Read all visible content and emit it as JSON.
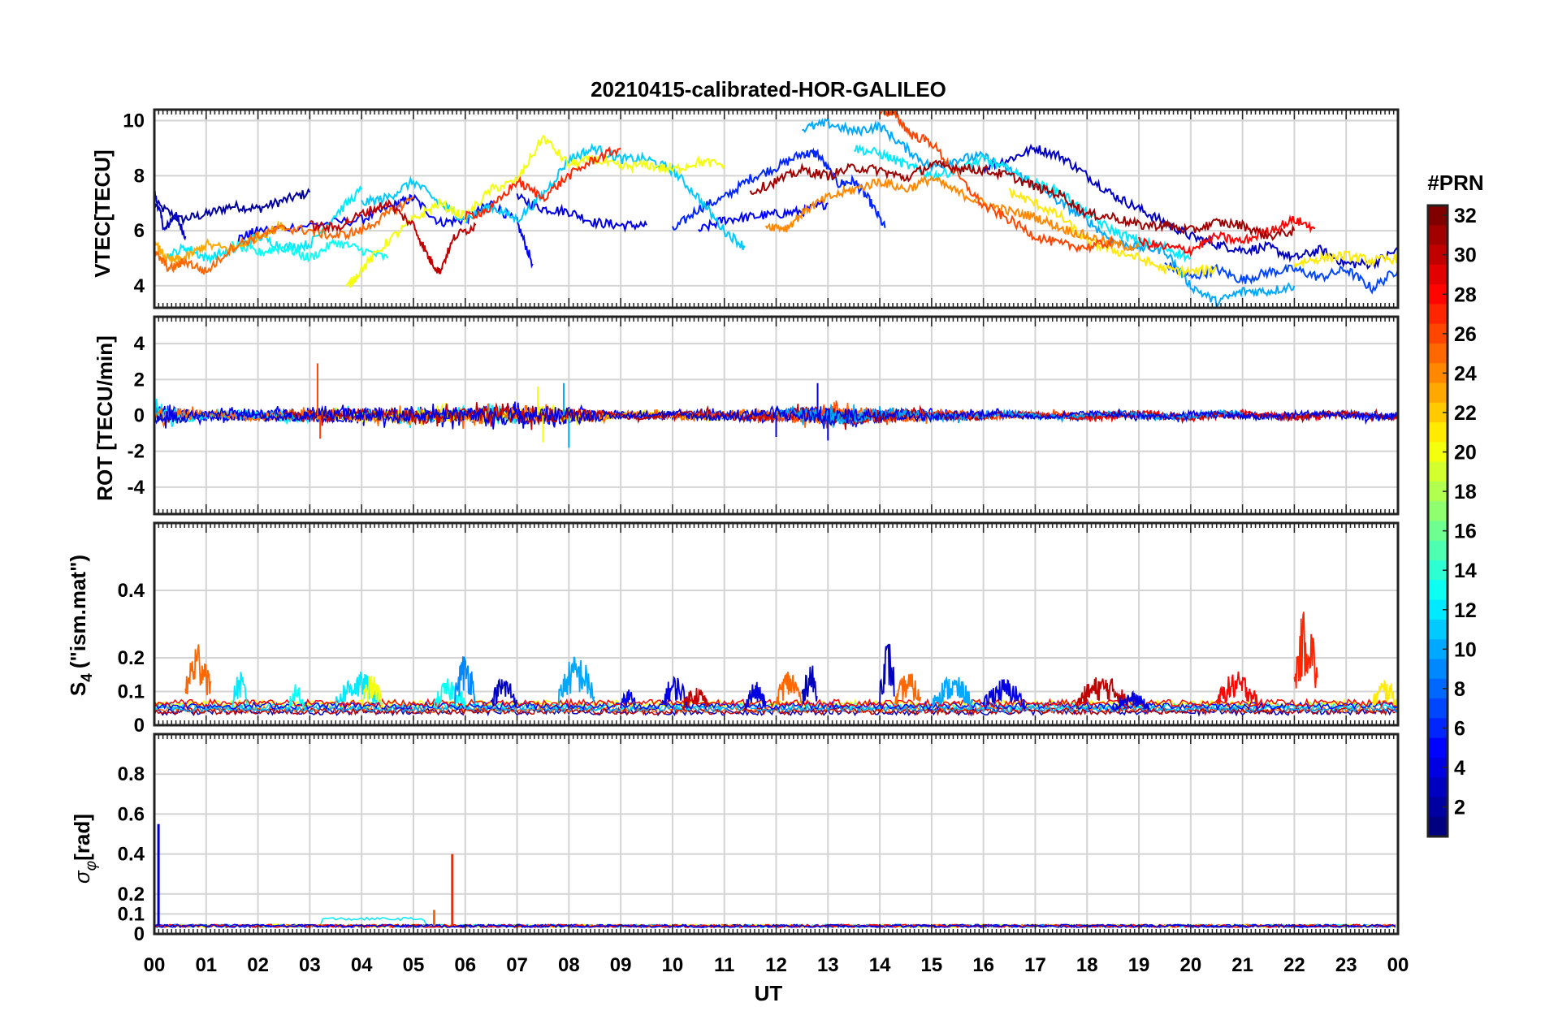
{
  "figure": {
    "title": "20210415-calibrated-HOR-GALILEO",
    "xlabel": "UT",
    "x_ticks": [
      "00",
      "01",
      "02",
      "03",
      "04",
      "05",
      "06",
      "07",
      "08",
      "09",
      "10",
      "11",
      "12",
      "13",
      "14",
      "15",
      "16",
      "17",
      "18",
      "19",
      "20",
      "21",
      "22",
      "23",
      "00"
    ]
  },
  "colorbar": {
    "label": "#PRN",
    "range": [
      1,
      32
    ],
    "ticks": [
      2,
      4,
      6,
      8,
      10,
      12,
      14,
      16,
      18,
      20,
      22,
      24,
      26,
      28,
      30,
      32
    ],
    "colormap": "jet"
  },
  "panels": [
    {
      "id": "vtec",
      "ylabel": "VTEC[TECU]",
      "ylim": [
        3.2,
        10.4
      ],
      "yticks": [
        4,
        6,
        8,
        10
      ]
    },
    {
      "id": "rot",
      "ylabel": "ROT [TECU/min]",
      "ylim": [
        -5.5,
        5.5
      ],
      "yticks": [
        -4,
        -2,
        0,
        2,
        4
      ]
    },
    {
      "id": "s4",
      "ylabel_main": "S",
      "ylabel_sub": "4",
      "ylabel_rest": "(\"ism.mat\")",
      "ylim": [
        0,
        0.6
      ],
      "yticks": [
        0,
        0.1,
        0.2,
        0.4
      ]
    },
    {
      "id": "sigma",
      "ylabel_main": "σ",
      "ylabel_sub": "φ",
      "ylabel_rest": "[rad]",
      "ylim": [
        0,
        1
      ],
      "yticks": [
        0,
        0.1,
        0.2,
        0.4,
        0.6,
        0.8
      ]
    }
  ],
  "chart_data": [
    {
      "type": "line",
      "panel": "vtec",
      "xlabel": "UT",
      "ylabel": "VTEC[TECU]",
      "xlim": [
        0,
        24
      ],
      "ylim": [
        3.2,
        10.4
      ],
      "grid": true,
      "series": [
        {
          "prn": 2,
          "x": [
            0.0,
            0.5,
            1.0,
            1.5,
            2.0,
            2.5,
            3.0
          ],
          "y": [
            7.0,
            6.4,
            6.6,
            6.9,
            6.8,
            7.1,
            7.4
          ]
        },
        {
          "prn": 3,
          "x": [
            0.0,
            0.2,
            0.4,
            0.6
          ],
          "y": [
            7.4,
            6.0,
            6.6,
            5.8
          ]
        },
        {
          "prn": 5,
          "x": [
            1.6,
            2.0,
            3.0,
            4.0,
            4.6,
            5.0,
            5.5,
            6.0,
            6.5,
            7.0,
            7.3
          ],
          "y": [
            5.7,
            6.0,
            6.2,
            6.4,
            6.9,
            7.2,
            6.3,
            6.4,
            7.0,
            6.3,
            4.8
          ]
        },
        {
          "prn": 4,
          "x": [
            7.0,
            7.5,
            8.0,
            8.5,
            9.0,
            9.5
          ],
          "y": [
            7.2,
            6.8,
            6.7,
            6.3,
            6.2,
            6.2
          ]
        },
        {
          "prn": 6,
          "x": [
            10.0,
            10.5,
            11.0,
            11.5,
            12.0,
            12.5,
            12.8,
            13.2,
            13.5,
            13.8,
            14.1
          ],
          "y": [
            6.0,
            6.8,
            7.2,
            7.9,
            8.3,
            8.8,
            8.8,
            7.7,
            7.8,
            7.1,
            6.1
          ]
        },
        {
          "prn": 5,
          "x": [
            10.5,
            11.0,
            11.5,
            12.0,
            12.5,
            13.0
          ],
          "y": [
            6.0,
            6.4,
            6.5,
            6.6,
            6.7,
            7.0
          ]
        },
        {
          "prn": 3,
          "x": [
            16.0,
            16.5,
            17.0,
            17.5,
            18.0,
            18.5,
            19.0,
            19.5,
            20.0,
            20.5,
            21.0,
            21.5,
            22.0,
            22.5,
            23.0,
            23.5,
            24.0
          ],
          "y": [
            8.3,
            8.6,
            9.0,
            8.7,
            8.0,
            7.3,
            6.8,
            6.3,
            5.8,
            5.5,
            5.3,
            5.4,
            5.0,
            5.3,
            4.8,
            4.8,
            5.3
          ]
        },
        {
          "prn": 7,
          "x": [
            19.5,
            20.0,
            20.5,
            21.0,
            21.5,
            22.0,
            22.5,
            23.0,
            23.5,
            24.0
          ],
          "y": [
            4.8,
            4.3,
            4.6,
            4.2,
            4.5,
            4.6,
            4.3,
            4.6,
            3.9,
            4.6
          ]
        },
        {
          "prn": 12,
          "x": [
            0.2,
            0.6,
            1.0,
            1.5,
            2.0,
            2.5,
            3.0,
            3.5,
            4.0
          ],
          "y": [
            5.0,
            5.4,
            5.0,
            5.3,
            5.8,
            5.4,
            5.5,
            6.6,
            7.5
          ]
        },
        {
          "prn": 13,
          "x": [
            1.5,
            2.0,
            2.5,
            3.0,
            3.5,
            4.0,
            4.5
          ],
          "y": [
            5.5,
            5.2,
            5.4,
            5.0,
            5.6,
            5.3,
            5.0
          ]
        },
        {
          "prn": 11,
          "x": [
            4.0,
            4.5,
            5.0,
            5.5,
            6.0,
            6.5,
            7.0,
            7.5,
            8.0,
            8.5,
            9.0,
            9.5,
            10.0,
            10.5,
            11.0,
            11.4
          ],
          "y": [
            7.0,
            7.2,
            7.8,
            7.0,
            6.4,
            6.9,
            6.4,
            7.3,
            8.6,
            9.0,
            8.6,
            8.6,
            8.2,
            7.2,
            6.0,
            5.4
          ]
        },
        {
          "prn": 10,
          "x": [
            12.5,
            13.0,
            13.5,
            14.0,
            14.5,
            15.0,
            15.5,
            16.0,
            16.5,
            17.0,
            17.5,
            18.0,
            18.5,
            19.0,
            19.5,
            20.0,
            20.5,
            21.0,
            21.5,
            22.0
          ],
          "y": [
            9.7,
            9.9,
            9.6,
            9.8,
            9.0,
            8.3,
            8.6,
            8.7,
            8.2,
            7.7,
            7.0,
            6.4,
            5.6,
            5.4,
            5.3,
            4.0,
            3.4,
            3.8,
            3.8,
            4.0
          ]
        },
        {
          "prn": 12,
          "x": [
            13.5,
            14.0,
            14.5,
            15.0,
            15.5,
            16.0,
            16.5,
            17.0,
            17.5,
            18.0,
            18.5,
            19.0,
            19.5,
            20.0
          ],
          "y": [
            9.0,
            8.8,
            8.4,
            8.0,
            8.2,
            8.6,
            8.2,
            7.7,
            7.4,
            6.6,
            6.0,
            5.6,
            5.4,
            5.0
          ]
        },
        {
          "prn": 20,
          "x": [
            3.7,
            4.0,
            4.5,
            5.0,
            5.5,
            6.0,
            6.5,
            7.0,
            7.5,
            8.0,
            8.5,
            9.0,
            9.5,
            10.0,
            10.5,
            11.0
          ],
          "y": [
            3.9,
            4.6,
            5.6,
            6.4,
            7.0,
            6.5,
            7.5,
            7.8,
            9.4,
            8.4,
            8.6,
            8.3,
            8.4,
            8.2,
            8.5,
            8.4
          ]
        },
        {
          "prn": 21,
          "x": [
            16.5,
            17.0,
            17.5,
            18.0,
            18.5,
            19.0,
            19.5,
            20.0,
            20.5
          ],
          "y": [
            7.4,
            7.0,
            6.5,
            5.6,
            5.3,
            5.0,
            4.6,
            4.5,
            4.6
          ]
        },
        {
          "prn": 21,
          "x": [
            22.0,
            22.5,
            23.0,
            23.5,
            24.0
          ],
          "y": [
            4.8,
            5.0,
            5.1,
            4.9,
            5.0
          ]
        },
        {
          "prn": 23,
          "x": [
            0.0,
            0.3,
            0.6,
            1.0,
            1.5,
            2.0,
            2.5
          ],
          "y": [
            5.5,
            4.9,
            5.0,
            5.5,
            5.3,
            5.8,
            6.2
          ]
        },
        {
          "prn": 24,
          "x": [
            11.8,
            12.2,
            12.6,
            13.0,
            13.5,
            14.0,
            14.5,
            15.0,
            15.5,
            16.0,
            16.5,
            17.0,
            17.5,
            18.0,
            18.5,
            19.0
          ],
          "y": [
            6.2,
            6.1,
            6.8,
            7.2,
            7.5,
            7.8,
            7.5,
            7.9,
            7.4,
            7.0,
            6.7,
            6.5,
            6.1,
            5.8,
            5.5,
            5.4
          ]
        },
        {
          "prn": 25,
          "x": [
            0.0,
            0.3,
            0.6,
            1.0,
            1.5,
            2.0,
            2.5,
            3.0,
            3.5,
            4.0,
            4.5,
            5.0
          ],
          "y": [
            5.2,
            4.6,
            4.9,
            4.5,
            5.4,
            5.8,
            6.1,
            6.0,
            5.8,
            6.0,
            6.6,
            7.2
          ]
        },
        {
          "prn": 26,
          "x": [
            14.0,
            14.3,
            14.6,
            15.0,
            15.5,
            16.0,
            16.5,
            17.0,
            17.5,
            18.0,
            18.5
          ],
          "y": [
            10.4,
            10.2,
            9.5,
            9.2,
            8.0,
            6.9,
            6.4,
            5.8,
            5.5,
            5.4,
            5.6
          ]
        },
        {
          "prn": 27,
          "x": [
            6.0,
            6.5,
            7.0,
            7.5,
            8.0,
            8.5,
            9.0
          ],
          "y": [
            6.5,
            6.8,
            7.8,
            7.2,
            8.0,
            8.6,
            9.0
          ]
        },
        {
          "prn": 28,
          "x": [
            19.0,
            19.5,
            20.0,
            20.5,
            21.0,
            21.5,
            22.0,
            22.4
          ],
          "y": [
            5.6,
            5.4,
            5.3,
            5.8,
            5.6,
            6.0,
            6.4,
            6.1
          ]
        },
        {
          "prn": 30,
          "x": [
            3.0,
            3.5,
            4.0,
            4.5,
            5.0,
            5.3,
            5.5,
            5.8,
            6.2
          ],
          "y": [
            6.2,
            6.1,
            6.6,
            7.0,
            6.2,
            5.0,
            4.5,
            5.8,
            6.2
          ]
        },
        {
          "prn": 31,
          "x": [
            11.5,
            12.0,
            12.5,
            13.0,
            13.5,
            14.0,
            14.5,
            15.0,
            15.5,
            16.0,
            16.5,
            17.0,
            17.5,
            18.0,
            18.5,
            19.0,
            19.5,
            20.0,
            20.5,
            21.0,
            21.5,
            22.0
          ],
          "y": [
            7.4,
            7.8,
            8.2,
            8.0,
            8.3,
            8.2,
            7.9,
            8.4,
            8.3,
            8.2,
            8.0,
            7.6,
            7.3,
            6.6,
            6.5,
            6.2,
            6.2,
            6.0,
            6.3,
            6.2,
            5.8,
            6.0
          ]
        }
      ]
    },
    {
      "type": "line",
      "panel": "rot",
      "xlabel": "UT",
      "ylabel": "ROT [TECU/min]",
      "xlim": [
        0,
        24
      ],
      "ylim": [
        -5.5,
        5.5
      ],
      "grid": true,
      "series_description_values": [
        {
          "prn": 26,
          "spikes_x": [
            3.15,
            3.2
          ],
          "spikes_y": [
            2.9,
            -1.3
          ]
        },
        {
          "prn": 10,
          "spikes_x": [
            7.9,
            8.0
          ],
          "spikes_y": [
            1.8,
            -1.8
          ]
        },
        {
          "prn": 4,
          "spikes_x": [
            12.0,
            12.8,
            13.0
          ],
          "spikes_y": [
            -1.2,
            1.8,
            -1.4
          ]
        },
        {
          "prn": 20,
          "spikes_x": [
            7.4,
            7.5
          ],
          "spikes_y": [
            1.6,
            -1.5
          ]
        }
      ],
      "envelope": [
        {
          "x": 0,
          "amp": 1.2
        },
        {
          "x": 1,
          "amp": 0.4
        },
        {
          "x": 3,
          "amp": 0.6
        },
        {
          "x": 5,
          "amp": 0.8
        },
        {
          "x": 7.5,
          "amp": 1.0
        },
        {
          "x": 9,
          "amp": 0.3
        },
        {
          "x": 12,
          "amp": 0.6
        },
        {
          "x": 13,
          "amp": 1.0
        },
        {
          "x": 15,
          "amp": 0.5
        },
        {
          "x": 17,
          "amp": 0.3
        },
        {
          "x": 21,
          "amp": 0.4
        },
        {
          "x": 24,
          "amp": 0.4
        }
      ]
    },
    {
      "type": "line",
      "panel": "s4",
      "xlabel": "UT",
      "ylabel": "S4 (\"ism.mat\")",
      "xlim": [
        0,
        24
      ],
      "ylim": [
        0,
        0.6
      ],
      "grid": true,
      "bursts": [
        {
          "prn": 25,
          "x_start": 0.6,
          "x_end": 1.1,
          "peak": 0.26
        },
        {
          "prn": 12,
          "x_start": 1.5,
          "x_end": 1.8,
          "peak": 0.16
        },
        {
          "prn": 13,
          "x_start": 2.6,
          "x_end": 2.9,
          "peak": 0.13
        },
        {
          "prn": 12,
          "x_start": 3.5,
          "x_end": 4.4,
          "peak": 0.16
        },
        {
          "prn": 20,
          "x_start": 4.0,
          "x_end": 4.4,
          "peak": 0.15
        },
        {
          "prn": 13,
          "x_start": 5.4,
          "x_end": 6.0,
          "peak": 0.14
        },
        {
          "prn": 9,
          "x_start": 5.8,
          "x_end": 6.2,
          "peak": 0.22
        },
        {
          "prn": 3,
          "x_start": 6.5,
          "x_end": 7.0,
          "peak": 0.15
        },
        {
          "prn": 10,
          "x_start": 7.8,
          "x_end": 8.5,
          "peak": 0.21
        },
        {
          "prn": 5,
          "x_start": 9.0,
          "x_end": 9.3,
          "peak": 0.11
        },
        {
          "prn": 4,
          "x_start": 9.8,
          "x_end": 10.3,
          "peak": 0.15
        },
        {
          "prn": 30,
          "x_start": 10.2,
          "x_end": 10.7,
          "peak": 0.12
        },
        {
          "prn": 4,
          "x_start": 11.4,
          "x_end": 11.8,
          "peak": 0.13
        },
        {
          "prn": 25,
          "x_start": 12.0,
          "x_end": 12.5,
          "peak": 0.17
        },
        {
          "prn": 3,
          "x_start": 12.5,
          "x_end": 12.8,
          "peak": 0.19
        },
        {
          "prn": 3,
          "x_start": 14.0,
          "x_end": 14.3,
          "peak": 0.26
        },
        {
          "prn": 25,
          "x_start": 14.3,
          "x_end": 14.8,
          "peak": 0.16
        },
        {
          "prn": 10,
          "x_start": 15.0,
          "x_end": 15.8,
          "peak": 0.15
        },
        {
          "prn": 4,
          "x_start": 16.0,
          "x_end": 16.8,
          "peak": 0.14
        },
        {
          "prn": 30,
          "x_start": 17.8,
          "x_end": 18.8,
          "peak": 0.15
        },
        {
          "prn": 4,
          "x_start": 18.5,
          "x_end": 19.2,
          "peak": 0.1
        },
        {
          "prn": 28,
          "x_start": 20.5,
          "x_end": 21.3,
          "peak": 0.16
        },
        {
          "prn": 27,
          "x_start": 22.0,
          "x_end": 22.45,
          "peak": 0.35
        },
        {
          "prn": 21,
          "x_start": 23.5,
          "x_end": 24.0,
          "peak": 0.14
        }
      ],
      "baseline": 0.03
    },
    {
      "type": "line",
      "panel": "sigma",
      "xlabel": "UT",
      "ylabel": "σφ [rad]",
      "xlim": [
        0,
        24
      ],
      "ylim": [
        0,
        1
      ],
      "grid": true,
      "spikes": [
        {
          "prn": 3,
          "x": 0.08,
          "y": 0.55
        },
        {
          "prn": 27,
          "x": 5.75,
          "y": 0.4
        },
        {
          "prn": 25,
          "x": 5.4,
          "y": 0.12
        }
      ],
      "baseline": 0.04
    }
  ]
}
